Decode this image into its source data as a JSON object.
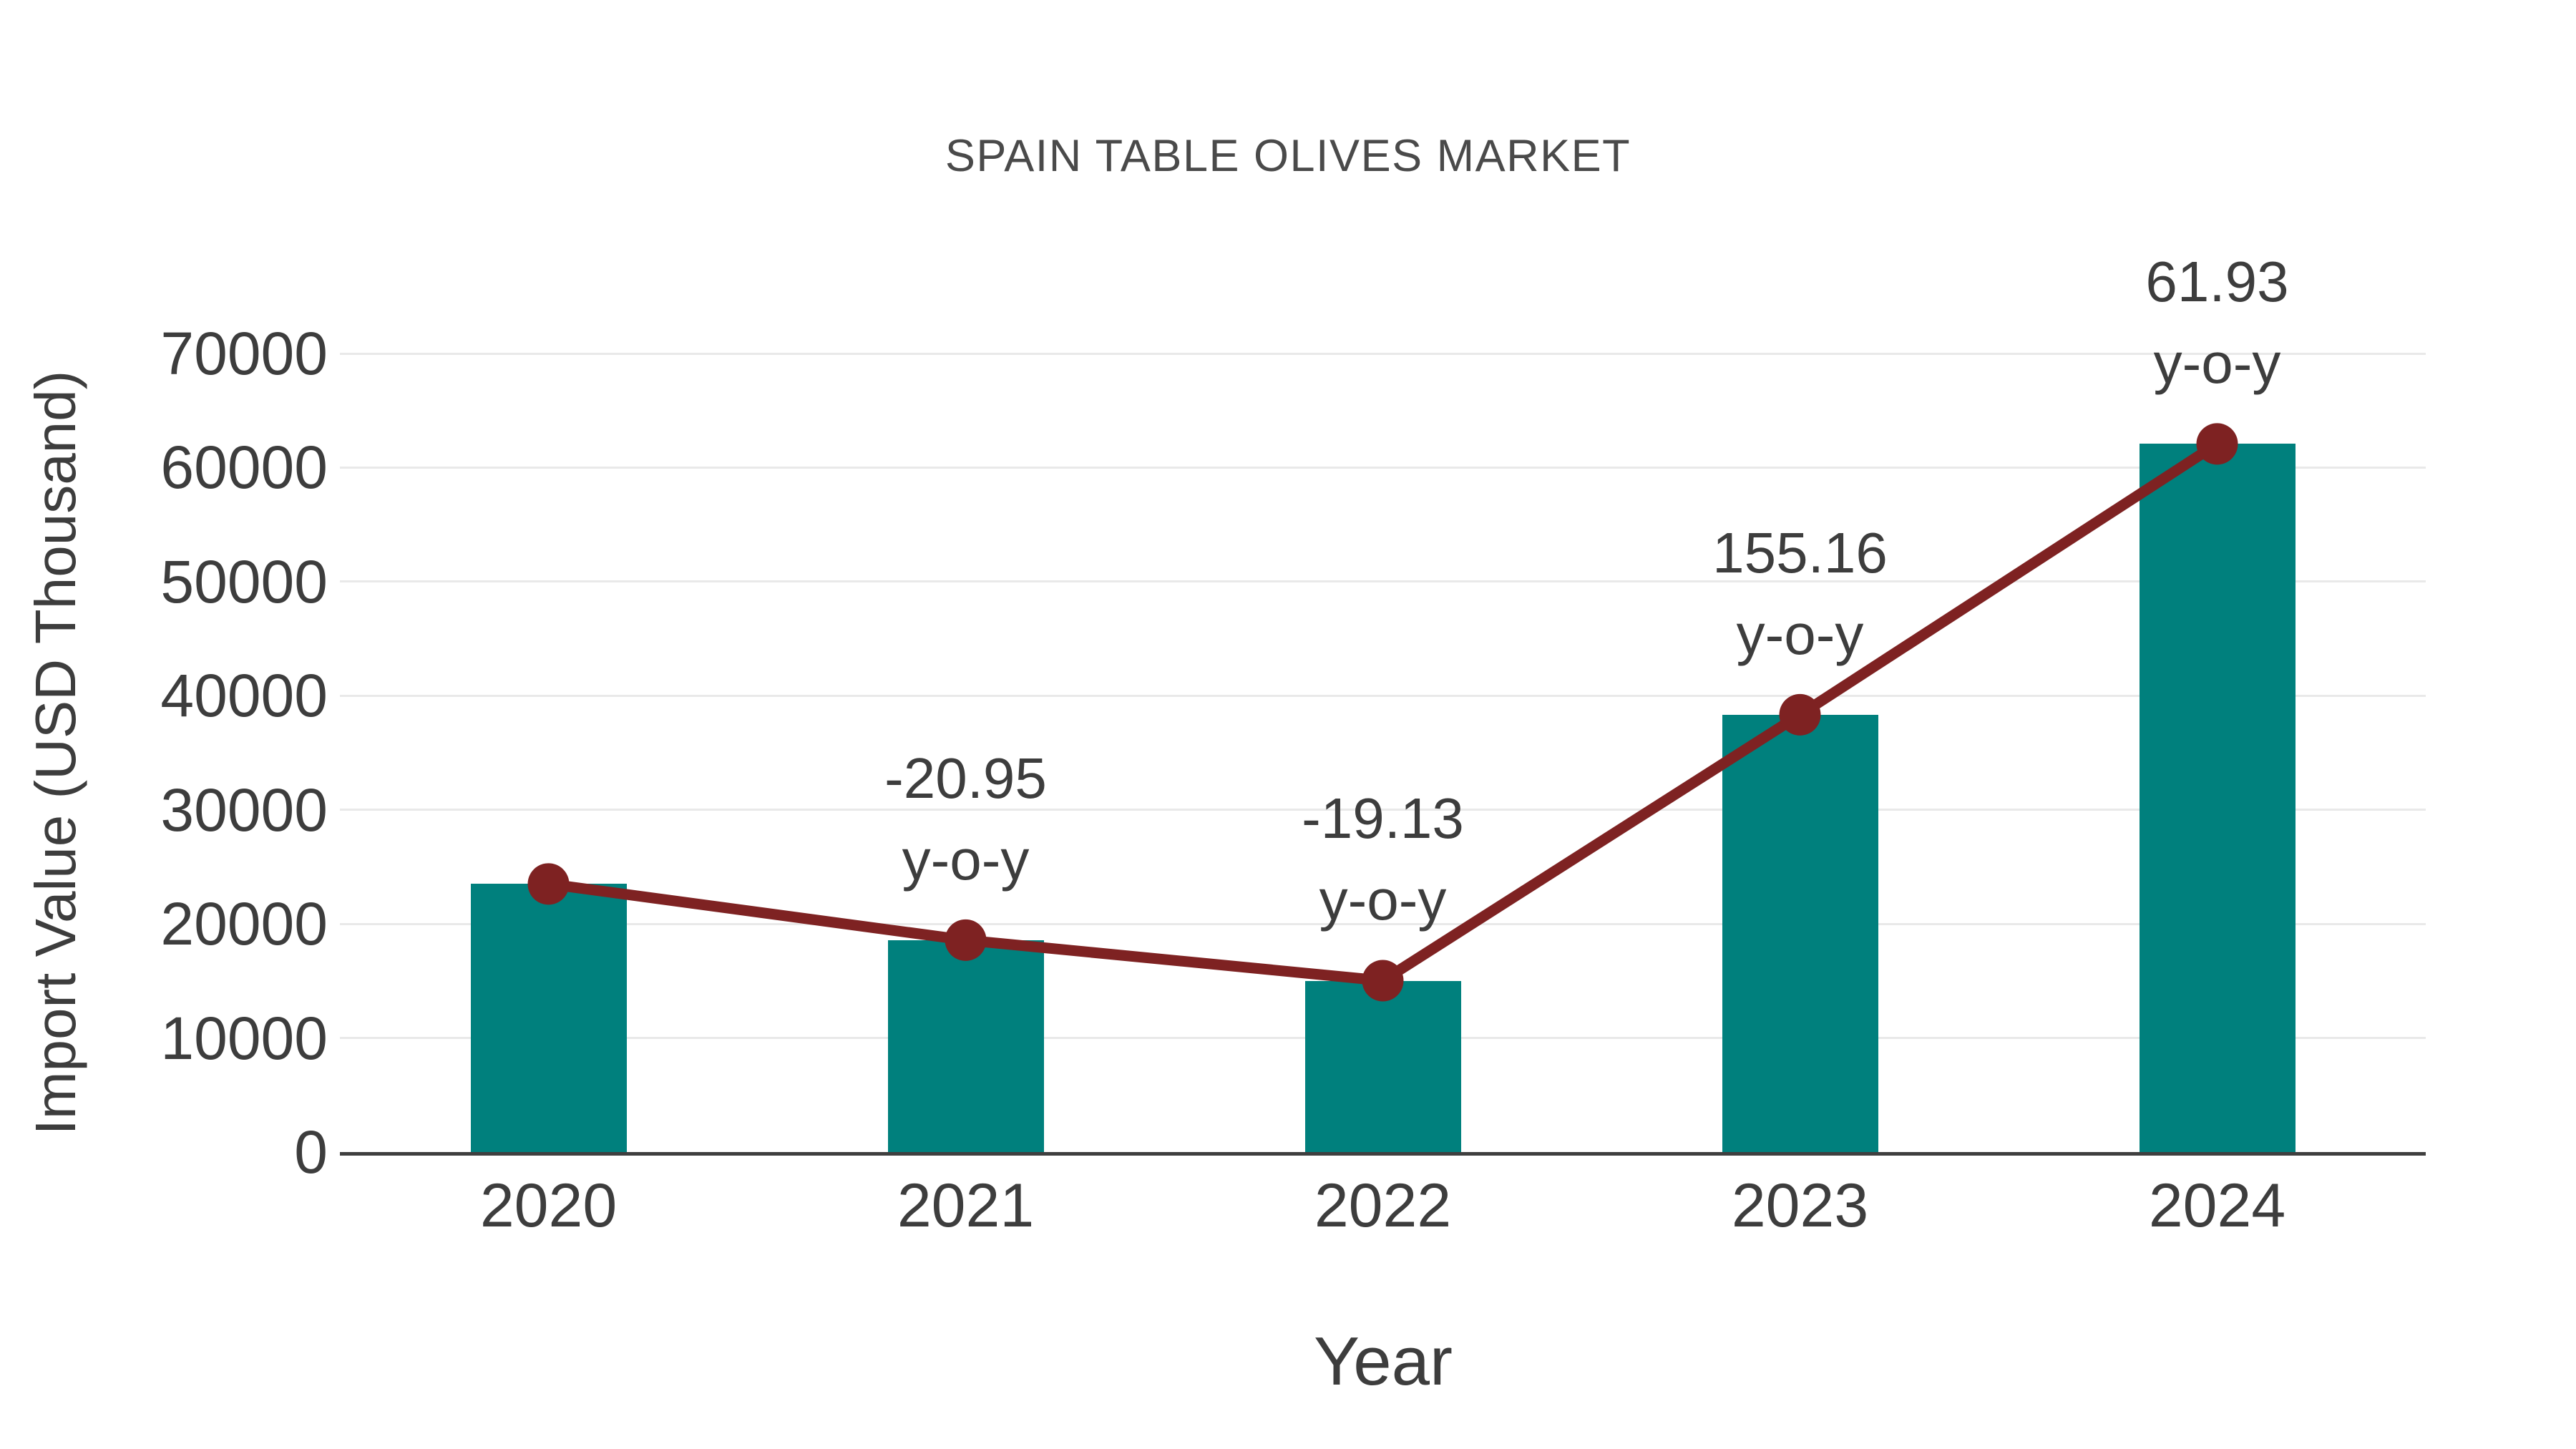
{
  "chart": {
    "title": "SPAIN TABLE OLIVES MARKET",
    "xlabel": "Year",
    "ylabel": "Import Value (USD Thousand)"
  },
  "chart_data": {
    "type": "bar",
    "title": "SPAIN TABLE OLIVES MARKET",
    "xlabel": "Year",
    "ylabel": "Import Value (USD Thousand)",
    "categories": [
      "2020",
      "2021",
      "2022",
      "2023",
      "2024"
    ],
    "series": [
      {
        "name": "import-value-bars",
        "type": "bar",
        "values": [
          23500,
          18577,
          15023,
          38333,
          62073
        ]
      },
      {
        "name": "import-value-trend-line",
        "type": "line",
        "values": [
          23500,
          18577,
          15023,
          38333,
          62073
        ]
      }
    ],
    "annotations": [
      {
        "category": "2021",
        "line1": "-20.95",
        "line2": "y-o-y"
      },
      {
        "category": "2022",
        "line1": "-19.13",
        "line2": "y-o-y"
      },
      {
        "category": "2023",
        "line1": "155.16",
        "line2": "y-o-y"
      },
      {
        "category": "2024",
        "line1": "61.93",
        "line2": "y-o-y"
      }
    ],
    "ylim": [
      0,
      70000
    ],
    "yticks": [
      0,
      10000,
      20000,
      30000,
      40000,
      50000,
      60000,
      70000
    ],
    "grid": true,
    "legend": false,
    "colors": {
      "bar": "#00807d",
      "line": "#7e2222",
      "grid": "#e9e9e9",
      "axis": "#3f3f3f",
      "title_text": "#4a4a4a",
      "tick_text": "#3d3d3d",
      "background": "#ffffff"
    }
  }
}
